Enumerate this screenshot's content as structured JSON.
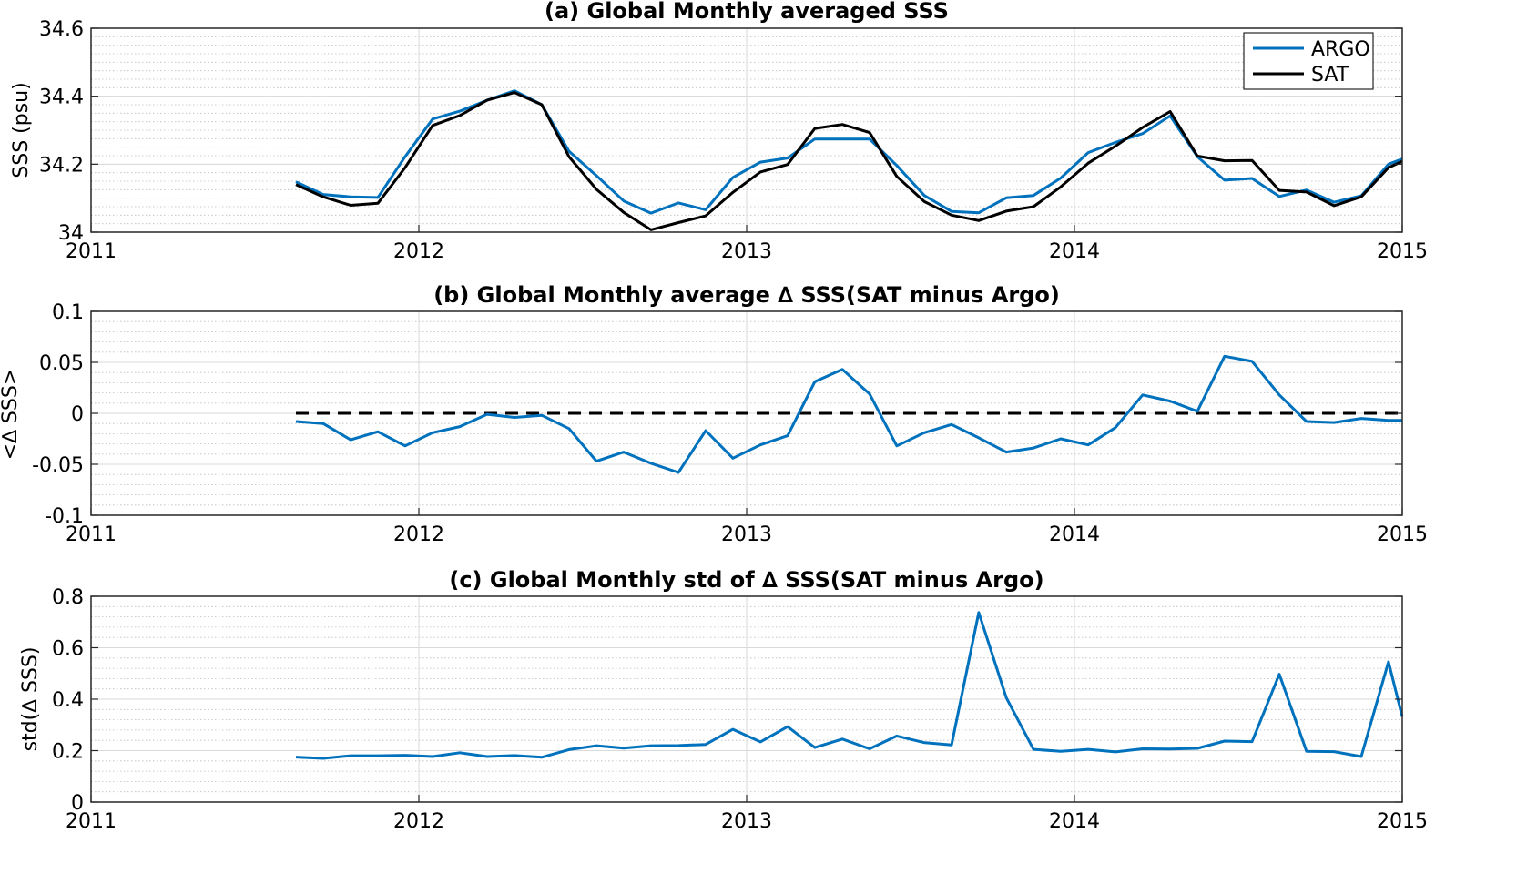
{
  "colors": {
    "argo": "#0072BD",
    "sat": "#000000",
    "grid": "#d9d9d9",
    "minor_grid": "#bdbdbd"
  },
  "chart_data": [
    {
      "type": "line",
      "title": "(a) Global Monthly averaged SSS",
      "ylabel": "SSS (psu)",
      "xlim": [
        2011,
        2015
      ],
      "ylim": [
        34.0,
        34.6
      ],
      "xticks": [
        2011,
        2012,
        2013,
        2014,
        2015
      ],
      "xtick_labels": [
        "2011",
        "2012",
        "2013",
        "2014",
        "2015"
      ],
      "yticks": [
        34.0,
        34.2,
        34.4,
        34.6
      ],
      "ytick_labels": [
        "34",
        "34.2",
        "34.4",
        "34.6"
      ],
      "minor_y_step": 0.025,
      "grid": true,
      "legend": {
        "placement": "top-right",
        "entries": [
          "ARGO",
          "SAT"
        ]
      },
      "x": [
        2011.625,
        2011.708,
        2011.792,
        2011.875,
        2011.958,
        2012.042,
        2012.125,
        2012.208,
        2012.292,
        2012.375,
        2012.458,
        2012.542,
        2012.625,
        2012.708,
        2012.792,
        2012.875,
        2012.958,
        2013.042,
        2013.125,
        2013.208,
        2013.292,
        2013.375,
        2013.458,
        2013.542,
        2013.625,
        2013.708,
        2013.792,
        2013.875,
        2013.958,
        2014.042,
        2014.125,
        2014.208,
        2014.292,
        2014.375,
        2014.458,
        2014.542,
        2014.625,
        2014.708,
        2014.792,
        2014.875,
        2014.958,
        2015.0
      ],
      "series": [
        {
          "name": "ARGO",
          "color": "#0072BD",
          "values": [
            34.148,
            34.111,
            34.104,
            34.102,
            34.222,
            34.333,
            34.356,
            34.388,
            34.416,
            34.375,
            34.238,
            34.166,
            34.092,
            34.056,
            34.086,
            34.066,
            34.161,
            34.206,
            34.218,
            34.274,
            34.274,
            34.274,
            34.196,
            34.108,
            34.061,
            34.057,
            34.101,
            34.108,
            34.159,
            34.234,
            34.264,
            34.29,
            34.342,
            34.222,
            34.153,
            34.158,
            34.105,
            34.124,
            34.088,
            34.107,
            34.2,
            34.215
          ]
        },
        {
          "name": "SAT",
          "color": "#000000",
          "values": [
            34.14,
            34.104,
            34.079,
            34.085,
            34.19,
            34.314,
            34.343,
            34.388,
            34.411,
            34.375,
            34.222,
            34.126,
            34.058,
            34.007,
            34.028,
            34.048,
            34.117,
            34.177,
            34.199,
            34.305,
            34.317,
            34.293,
            34.164,
            34.09,
            34.05,
            34.034,
            34.062,
            34.075,
            34.133,
            34.203,
            34.253,
            34.308,
            34.355,
            34.224,
            34.21,
            34.211,
            34.123,
            34.118,
            34.078,
            34.104,
            34.19,
            34.208
          ]
        }
      ]
    },
    {
      "type": "line",
      "title": "(b) Global Monthly average ∆ SSS(SAT minus Argo)",
      "ylabel": "<∆ SSS>",
      "xlim": [
        2011,
        2015
      ],
      "ylim": [
        -0.1,
        0.1
      ],
      "xticks": [
        2011,
        2012,
        2013,
        2014,
        2015
      ],
      "xtick_labels": [
        "2011",
        "2012",
        "2013",
        "2014",
        "2015"
      ],
      "yticks": [
        -0.1,
        -0.05,
        0,
        0.05,
        0.1
      ],
      "ytick_labels": [
        "-0.1",
        "-0.05",
        "0",
        "0.05",
        "0.1"
      ],
      "minor_y_step": 0.01,
      "grid": true,
      "reference_line": {
        "y": 0,
        "x_from": 2011.625,
        "x_to": 2015,
        "style": "dashed"
      },
      "x": [
        2011.625,
        2011.708,
        2011.792,
        2011.875,
        2011.958,
        2012.042,
        2012.125,
        2012.208,
        2012.292,
        2012.375,
        2012.458,
        2012.542,
        2012.625,
        2012.708,
        2012.792,
        2012.875,
        2012.958,
        2013.042,
        2013.125,
        2013.208,
        2013.292,
        2013.375,
        2013.458,
        2013.542,
        2013.625,
        2013.708,
        2013.792,
        2013.875,
        2013.958,
        2014.042,
        2014.125,
        2014.208,
        2014.292,
        2014.375,
        2014.458,
        2014.542,
        2014.625,
        2014.708,
        2014.792,
        2014.875,
        2014.958,
        2015.0
      ],
      "series": [
        {
          "name": "",
          "color": "#0072BD",
          "values": [
            -0.008,
            -0.01,
            -0.026,
            -0.018,
            -0.032,
            -0.019,
            -0.013,
            -0.001,
            -0.004,
            -0.002,
            -0.015,
            -0.047,
            -0.038,
            -0.049,
            -0.058,
            -0.017,
            -0.044,
            -0.031,
            -0.022,
            0.031,
            0.043,
            0.019,
            -0.032,
            -0.019,
            -0.011,
            -0.024,
            -0.038,
            -0.034,
            -0.025,
            -0.031,
            -0.014,
            0.018,
            0.012,
            0.002,
            0.056,
            0.051,
            0.018,
            -0.008,
            -0.009,
            -0.005,
            -0.007,
            -0.007
          ]
        }
      ]
    },
    {
      "type": "line",
      "title": "(c) Global Monthly std of ∆ SSS(SAT minus Argo)",
      "ylabel": "std(∆ SSS)",
      "xlim": [
        2011,
        2015
      ],
      "ylim": [
        0,
        0.8
      ],
      "xticks": [
        2011,
        2012,
        2013,
        2014,
        2015
      ],
      "xtick_labels": [
        "2011",
        "2012",
        "2013",
        "2014",
        "2015"
      ],
      "yticks": [
        0,
        0.2,
        0.4,
        0.6,
        0.8
      ],
      "ytick_labels": [
        "0",
        "0.2",
        "0.4",
        "0.6",
        "0.8"
      ],
      "minor_y_step": 0.04,
      "grid": true,
      "x": [
        2011.625,
        2011.708,
        2011.792,
        2011.875,
        2011.958,
        2012.042,
        2012.125,
        2012.208,
        2012.292,
        2012.375,
        2012.458,
        2012.542,
        2012.625,
        2012.708,
        2012.792,
        2012.875,
        2012.958,
        2013.042,
        2013.125,
        2013.208,
        2013.292,
        2013.375,
        2013.458,
        2013.542,
        2013.625,
        2013.708,
        2013.792,
        2013.875,
        2013.958,
        2014.042,
        2014.125,
        2014.208,
        2014.292,
        2014.375,
        2014.458,
        2014.542,
        2014.625,
        2014.708,
        2014.792,
        2014.875,
        2014.958,
        2015.0
      ],
      "series": [
        {
          "name": "",
          "color": "#0072BD",
          "values": [
            0.175,
            0.17,
            0.18,
            0.18,
            0.182,
            0.177,
            0.192,
            0.177,
            0.181,
            0.174,
            0.204,
            0.219,
            0.21,
            0.219,
            0.22,
            0.224,
            0.283,
            0.234,
            0.293,
            0.212,
            0.245,
            0.207,
            0.257,
            0.231,
            0.222,
            0.737,
            0.406,
            0.205,
            0.197,
            0.205,
            0.195,
            0.207,
            0.206,
            0.209,
            0.237,
            0.235,
            0.497,
            0.197,
            0.196,
            0.177,
            0.545,
            0.332
          ]
        }
      ]
    }
  ]
}
